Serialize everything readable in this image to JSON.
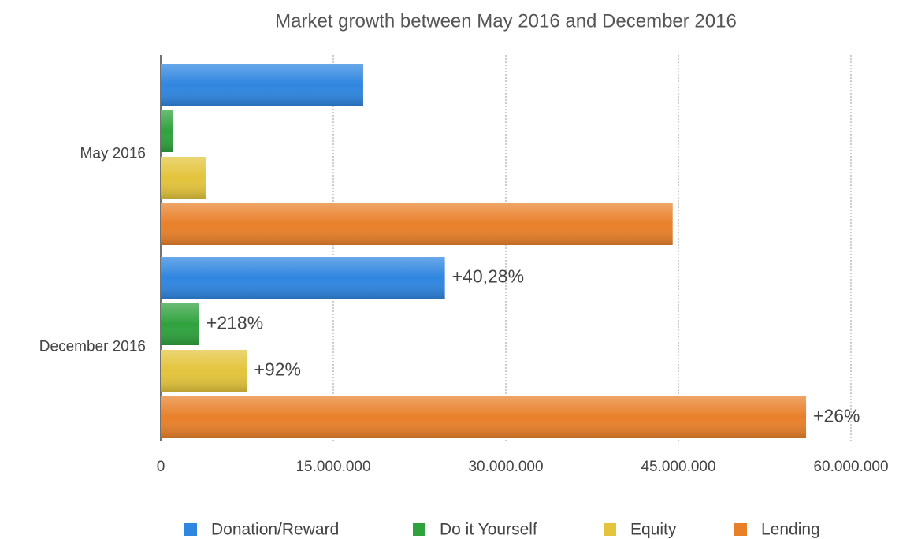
{
  "chart_data": {
    "type": "hbar",
    "title": "Market growth between May 2016 and December 2016",
    "categories": [
      "May 2016",
      "December 2016"
    ],
    "series": [
      {
        "name": "Donation/Reward",
        "color": "#2f86e0",
        "values": [
          17600000,
          24700000
        ]
      },
      {
        "name": "Do it Yourself",
        "color": "#2fa23e",
        "values": [
          1050000,
          3350000
        ]
      },
      {
        "name": "Equity",
        "color": "#e3c43c",
        "values": [
          3900000,
          7500000
        ]
      },
      {
        "name": "Lending",
        "color": "#e8802a",
        "values": [
          44500000,
          56100000
        ]
      }
    ],
    "annotations": [
      "+40,28%",
      "+218%",
      "+92%",
      "+26%"
    ],
    "xlim": [
      0,
      60000000
    ],
    "xticks": [
      0,
      {
        "value": 15000000,
        "label": "15.000.000"
      },
      {
        "value": 30000000,
        "label": "30.000.000"
      },
      {
        "value": 45000000,
        "label": "45.000.000"
      },
      {
        "value": 60000000,
        "label": "60.000.000"
      }
    ],
    "grid": true,
    "legend": "bottom"
  }
}
